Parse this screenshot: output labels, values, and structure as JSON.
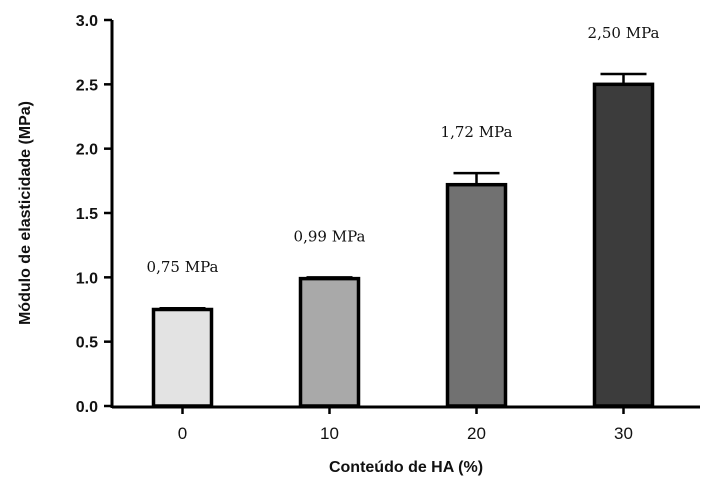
{
  "chart_data": {
    "type": "bar",
    "title": "",
    "xlabel": "Conteúdo de HA (%)",
    "ylabel": "Módulo de elasticidade  (MPa)",
    "categories": [
      "0",
      "10",
      "20",
      "30"
    ],
    "values": [
      0.75,
      0.99,
      1.72,
      2.5
    ],
    "errors": [
      0.01,
      0.01,
      0.09,
      0.08
    ],
    "data_labels": [
      "0,75 MPa",
      "0,99 MPa",
      "1,72 MPa",
      "2,50 MPa"
    ],
    "bar_colors": [
      "#e3e3e3",
      "#a9a9a9",
      "#717171",
      "#3c3c3c"
    ],
    "ylim": [
      0,
      3.0
    ],
    "yticks": [
      "0.0",
      "0.5",
      "1.0",
      "1.5",
      "2.0",
      "2.5",
      "3.0"
    ],
    "ytick_values": [
      0,
      0.5,
      1.0,
      1.5,
      2.0,
      2.5,
      3.0
    ],
    "grid": false,
    "legend": "none"
  }
}
